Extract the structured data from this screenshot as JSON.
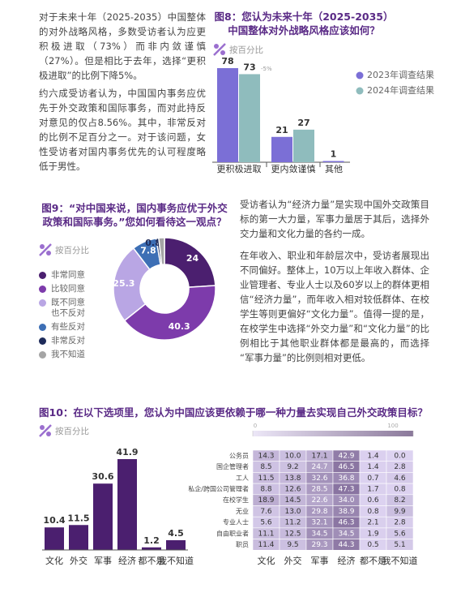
{
  "paragraphs": [
    "对于未来十年（2025-2035）中国整体的对外战略风格，多数受访者认为应更积极进取（73%）而非内敛谨慎（27%）。但是相比于去年，选择“更积极进取”的比例下降5%。",
    "约六成受访者认为，中国国内事务应优先于外交政策和国际事务，而对此持反对意见的仅占8.56%。其中，非常反对的比例不足百分之一。对于该问题，女性受访者对国内事务优先的认可程度略低于男性。",
    "受访者认为“经济力量”是实现中国外交政策目标的第一大力量，军事力量居于其后，选择外交力量和文化力量的各约一成。",
    "在年收入、职业和年龄层次中，受访者展现出不同偏好。整体上，10万以上年收入群体、企业管理者、专业人士以及60岁以上的群体更相信“经济力量”，而年收入相对较低群体、在校学生等则更偏好“文化力量”。值得一提的是，在校学生中选择“外交力量”和“文化力量”的比例相比于其他职业群体都是最高的，而选择 “军事力量”的比例则相对更低。"
  ],
  "chart_data": [
    {
      "type": "bar",
      "title": "图8：您认为未来十年（2025-2035）中国整体对外战略风格应该如何？",
      "subtitle": "按百分比",
      "categories": [
        "更积极进取",
        "更内敛谨慎",
        "其他"
      ],
      "series": [
        {
          "name": "2023年调查结果",
          "color": "#7b6fd6",
          "values": [
            78,
            21,
            1
          ]
        },
        {
          "name": "2024年调查结果",
          "color": "#8fbcbd",
          "values": [
            73,
            27,
            null
          ]
        }
      ],
      "annotations": [
        "-5%"
      ]
    },
    {
      "type": "pie",
      "title": "图9：“对中国来说，国内事务应优于外交政策和国际事务。”您如何看待这一观点？",
      "subtitle": "按百分比",
      "categories": [
        "非常同意",
        "比较同意",
        "既不同意也不反对",
        "有些反对",
        "非常反对",
        "我不知道"
      ],
      "values": [
        24,
        40.3,
        25.3,
        7.8,
        0.8,
        1.8
      ],
      "value_labels": [
        "24",
        "40.3",
        "25.3",
        "7.8",
        "0.8",
        null
      ],
      "colors": [
        "#4b1f6f",
        "#7d3bab",
        "#b9a6e4",
        "#3d6fb5",
        "#1e2b5a",
        "#a5a5a5"
      ]
    },
    {
      "type": "bar",
      "title": "图10：在以下选项里，您认为中国应该更依赖于哪一种力量去实现自己外交政策目标？",
      "subtitle": "按百分比",
      "categories": [
        "文化",
        "外交",
        "军事",
        "经济",
        "都不是",
        "我不知道"
      ],
      "values": [
        10.4,
        11.5,
        30.6,
        41.9,
        1.2,
        4.5
      ],
      "color": "#4b1f6f"
    },
    {
      "type": "heatmap",
      "rows": [
        "公务员",
        "国企管理者",
        "工人",
        "私企/跨国公司管理者",
        "在校学生",
        "无业",
        "专业人士",
        "自由职业者",
        "职员"
      ],
      "columns": [
        "文化",
        "外交",
        "军事",
        "经济",
        "都不是",
        "我不知道"
      ],
      "values": [
        [
          14.3,
          10,
          17.1,
          42.9,
          1.4,
          0
        ],
        [
          8.5,
          9.2,
          24.7,
          46.5,
          1.4,
          2.8
        ],
        [
          11.5,
          13.8,
          32.6,
          36.8,
          0.7,
          4.6
        ],
        [
          8.8,
          12.6,
          28.5,
          47.3,
          1.7,
          0.8
        ],
        [
          18.9,
          14.5,
          22.6,
          34,
          0.6,
          8.2
        ],
        [
          7.6,
          13,
          29.8,
          38.9,
          0.8,
          9.9
        ],
        [
          5.6,
          11.2,
          32.1,
          46.3,
          2.1,
          2.8
        ],
        [
          11.1,
          12.5,
          34.5,
          34.5,
          1.9,
          5.6
        ],
        [
          11.4,
          9.5,
          29.3,
          44.3,
          0.5,
          5.1
        ]
      ],
      "value_labels": [
        [
          "14.3",
          "10.0",
          "17.1",
          "42.9",
          "1.4",
          "0.0"
        ],
        [
          "8.5",
          "9.2",
          "24.7",
          "46.5",
          "1.4",
          "2.8"
        ],
        [
          "11.5",
          "13.8",
          "32.6",
          "36.8",
          "0.7",
          "4.6"
        ],
        [
          "8.8",
          "12.6",
          "28.5",
          "47.3",
          "1.7",
          "0.8"
        ],
        [
          "18.9",
          "14.5",
          "22.6",
          "34.0",
          "0.6",
          "8.2"
        ],
        [
          "7.6",
          "13.0",
          "29.8",
          "38.9",
          "0.8",
          "9.9"
        ],
        [
          "5.6",
          "11.2",
          "32.1",
          "46.3",
          "2.1",
          "2.8"
        ],
        [
          "11.1",
          "12.5",
          "34.5",
          "34.5",
          "1.9",
          "5.6"
        ],
        [
          "11.4",
          "9.5",
          "29.3",
          "44.3",
          "0.5",
          "5.1"
        ]
      ],
      "zlim": [
        0,
        100
      ],
      "zticks": [
        0,
        100
      ],
      "colors": [
        "#ddd3f1",
        "#2c0b48"
      ]
    }
  ]
}
